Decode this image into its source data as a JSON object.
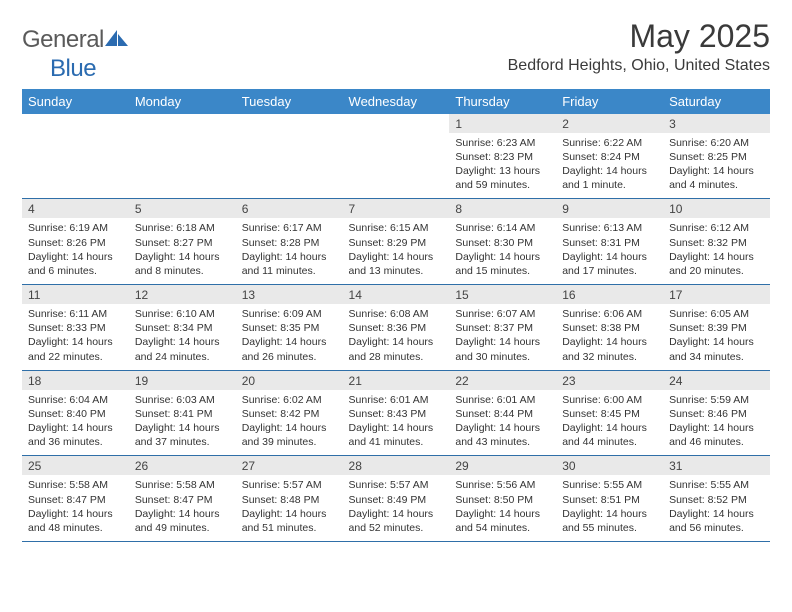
{
  "brand": {
    "text1": "General",
    "text2": "Blue"
  },
  "title": "May 2025",
  "location": "Bedford Heights, Ohio, United States",
  "colors": {
    "header_bg": "#3b87c8",
    "header_text": "#ffffff",
    "daynum_bg": "#e9e9e9",
    "border": "#2f6fa8",
    "logo_accent": "#2b6bb0",
    "logo_gray": "#5a5a5a"
  },
  "typography": {
    "title_fontsize": 32,
    "location_fontsize": 16,
    "dayhead_fontsize": 13,
    "daynum_fontsize": 12,
    "cell_fontsize": 10.5
  },
  "weekdays": [
    "Sunday",
    "Monday",
    "Tuesday",
    "Wednesday",
    "Thursday",
    "Friday",
    "Saturday"
  ],
  "weeks": [
    [
      null,
      null,
      null,
      null,
      {
        "n": "1",
        "sr": "6:23 AM",
        "ss": "8:23 PM",
        "dl": "Daylight: 13 hours and 59 minutes."
      },
      {
        "n": "2",
        "sr": "6:22 AM",
        "ss": "8:24 PM",
        "dl": "Daylight: 14 hours and 1 minute."
      },
      {
        "n": "3",
        "sr": "6:20 AM",
        "ss": "8:25 PM",
        "dl": "Daylight: 14 hours and 4 minutes."
      }
    ],
    [
      {
        "n": "4",
        "sr": "6:19 AM",
        "ss": "8:26 PM",
        "dl": "Daylight: 14 hours and 6 minutes."
      },
      {
        "n": "5",
        "sr": "6:18 AM",
        "ss": "8:27 PM",
        "dl": "Daylight: 14 hours and 8 minutes."
      },
      {
        "n": "6",
        "sr": "6:17 AM",
        "ss": "8:28 PM",
        "dl": "Daylight: 14 hours and 11 minutes."
      },
      {
        "n": "7",
        "sr": "6:15 AM",
        "ss": "8:29 PM",
        "dl": "Daylight: 14 hours and 13 minutes."
      },
      {
        "n": "8",
        "sr": "6:14 AM",
        "ss": "8:30 PM",
        "dl": "Daylight: 14 hours and 15 minutes."
      },
      {
        "n": "9",
        "sr": "6:13 AM",
        "ss": "8:31 PM",
        "dl": "Daylight: 14 hours and 17 minutes."
      },
      {
        "n": "10",
        "sr": "6:12 AM",
        "ss": "8:32 PM",
        "dl": "Daylight: 14 hours and 20 minutes."
      }
    ],
    [
      {
        "n": "11",
        "sr": "6:11 AM",
        "ss": "8:33 PM",
        "dl": "Daylight: 14 hours and 22 minutes."
      },
      {
        "n": "12",
        "sr": "6:10 AM",
        "ss": "8:34 PM",
        "dl": "Daylight: 14 hours and 24 minutes."
      },
      {
        "n": "13",
        "sr": "6:09 AM",
        "ss": "8:35 PM",
        "dl": "Daylight: 14 hours and 26 minutes."
      },
      {
        "n": "14",
        "sr": "6:08 AM",
        "ss": "8:36 PM",
        "dl": "Daylight: 14 hours and 28 minutes."
      },
      {
        "n": "15",
        "sr": "6:07 AM",
        "ss": "8:37 PM",
        "dl": "Daylight: 14 hours and 30 minutes."
      },
      {
        "n": "16",
        "sr": "6:06 AM",
        "ss": "8:38 PM",
        "dl": "Daylight: 14 hours and 32 minutes."
      },
      {
        "n": "17",
        "sr": "6:05 AM",
        "ss": "8:39 PM",
        "dl": "Daylight: 14 hours and 34 minutes."
      }
    ],
    [
      {
        "n": "18",
        "sr": "6:04 AM",
        "ss": "8:40 PM",
        "dl": "Daylight: 14 hours and 36 minutes."
      },
      {
        "n": "19",
        "sr": "6:03 AM",
        "ss": "8:41 PM",
        "dl": "Daylight: 14 hours and 37 minutes."
      },
      {
        "n": "20",
        "sr": "6:02 AM",
        "ss": "8:42 PM",
        "dl": "Daylight: 14 hours and 39 minutes."
      },
      {
        "n": "21",
        "sr": "6:01 AM",
        "ss": "8:43 PM",
        "dl": "Daylight: 14 hours and 41 minutes."
      },
      {
        "n": "22",
        "sr": "6:01 AM",
        "ss": "8:44 PM",
        "dl": "Daylight: 14 hours and 43 minutes."
      },
      {
        "n": "23",
        "sr": "6:00 AM",
        "ss": "8:45 PM",
        "dl": "Daylight: 14 hours and 44 minutes."
      },
      {
        "n": "24",
        "sr": "5:59 AM",
        "ss": "8:46 PM",
        "dl": "Daylight: 14 hours and 46 minutes."
      }
    ],
    [
      {
        "n": "25",
        "sr": "5:58 AM",
        "ss": "8:47 PM",
        "dl": "Daylight: 14 hours and 48 minutes."
      },
      {
        "n": "26",
        "sr": "5:58 AM",
        "ss": "8:47 PM",
        "dl": "Daylight: 14 hours and 49 minutes."
      },
      {
        "n": "27",
        "sr": "5:57 AM",
        "ss": "8:48 PM",
        "dl": "Daylight: 14 hours and 51 minutes."
      },
      {
        "n": "28",
        "sr": "5:57 AM",
        "ss": "8:49 PM",
        "dl": "Daylight: 14 hours and 52 minutes."
      },
      {
        "n": "29",
        "sr": "5:56 AM",
        "ss": "8:50 PM",
        "dl": "Daylight: 14 hours and 54 minutes."
      },
      {
        "n": "30",
        "sr": "5:55 AM",
        "ss": "8:51 PM",
        "dl": "Daylight: 14 hours and 55 minutes."
      },
      {
        "n": "31",
        "sr": "5:55 AM",
        "ss": "8:52 PM",
        "dl": "Daylight: 14 hours and 56 minutes."
      }
    ]
  ],
  "labels": {
    "sunrise": "Sunrise: ",
    "sunset": "Sunset: "
  }
}
